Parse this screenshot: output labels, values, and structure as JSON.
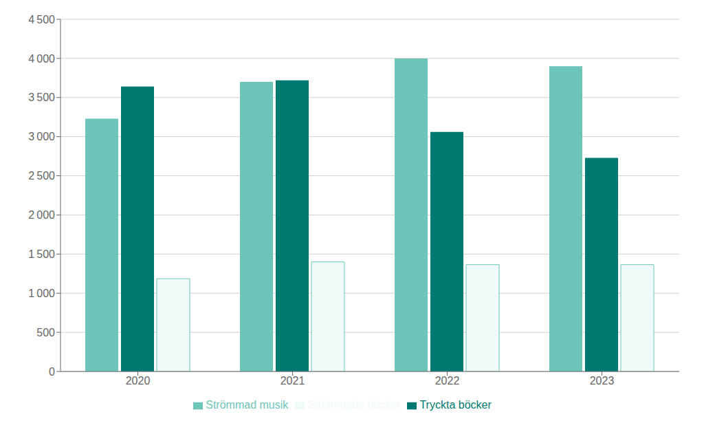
{
  "chart_data": {
    "type": "bar",
    "categories": [
      "2020",
      "2021",
      "2022",
      "2023"
    ],
    "series": [
      {
        "name": "Strömmad musik",
        "color": "#6dc5ba",
        "values": [
          3230,
          3700,
          4000,
          3900
        ]
      },
      {
        "name": "Tryckta böcker",
        "color": "#007a70",
        "values": [
          3640,
          3720,
          3060,
          2730
        ]
      },
      {
        "name": "Strömmade böcker",
        "color": "#f0faf8",
        "values": [
          1185,
          1400,
          1365,
          1365
        ]
      }
    ],
    "ylim": [
      0,
      4500
    ],
    "yticks": [
      0,
      500,
      {
        "value": 1000,
        "label": "1 000"
      },
      {
        "value": 1500,
        "label": "1 500"
      },
      {
        "value": 2000,
        "label": "2 000"
      },
      {
        "value": 2500,
        "label": "2 500"
      },
      {
        "value": 3000,
        "label": "3 000"
      },
      {
        "value": 3500,
        "label": "3 500"
      },
      {
        "value": 4000,
        "label": "4 000"
      },
      {
        "value": 4500,
        "label": "4 500"
      }
    ],
    "grid": true,
    "legend": "bottom"
  }
}
